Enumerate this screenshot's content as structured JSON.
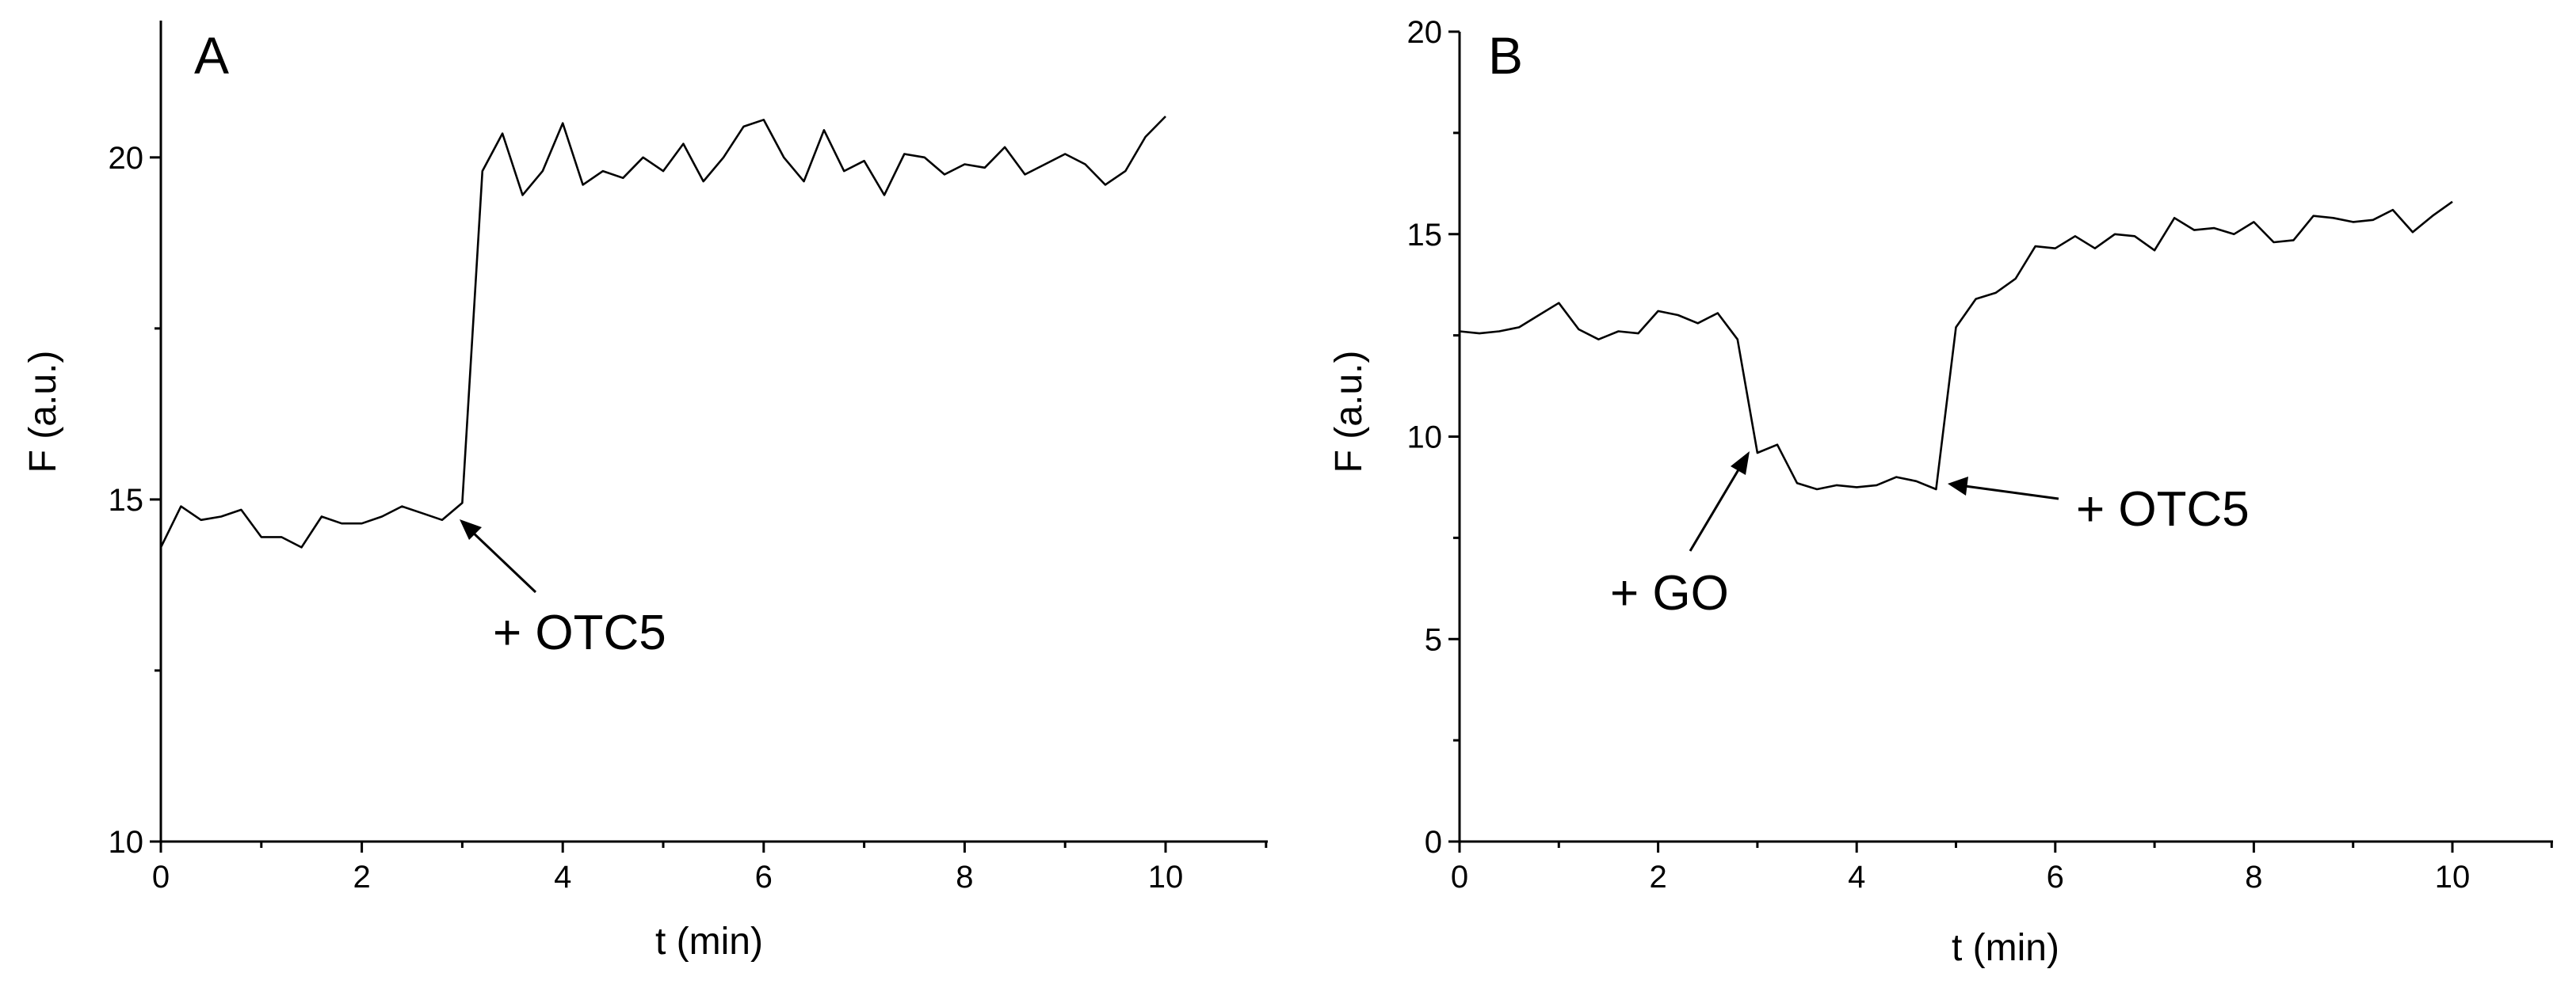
{
  "chart_data": [
    {
      "type": "line",
      "panel_label": "A",
      "xlabel": "t (min)",
      "ylabel": "F (a.u.)",
      "xlim": [
        0,
        11
      ],
      "ylim": [
        10,
        22
      ],
      "xticks": [
        0,
        2,
        4,
        6,
        8,
        10
      ],
      "yticks": [
        10,
        15,
        20
      ],
      "grid": false,
      "series": [
        {
          "x": [
            0,
            0.2,
            0.4,
            0.6,
            0.8,
            1.0,
            1.2,
            1.4,
            1.6,
            1.8,
            2.0,
            2.2,
            2.4,
            2.6,
            2.8,
            3.0,
            3.2,
            3.4,
            3.6,
            3.8,
            4.0,
            4.2,
            4.4,
            4.6,
            4.8,
            5.0,
            5.2,
            5.4,
            5.6,
            5.8,
            6.0,
            6.2,
            6.4,
            6.6,
            6.8,
            7.0,
            7.2,
            7.4,
            7.6,
            7.8,
            8.0,
            8.2,
            8.4,
            8.6,
            8.8,
            9.0,
            9.2,
            9.4,
            9.6,
            9.8,
            10.0
          ],
          "y": [
            14.3,
            14.9,
            14.7,
            14.75,
            14.85,
            14.45,
            14.45,
            14.3,
            14.75,
            14.65,
            14.65,
            14.75,
            14.9,
            14.8,
            14.7,
            14.95,
            19.8,
            20.35,
            19.45,
            19.8,
            20.5,
            19.6,
            19.8,
            19.7,
            20.0,
            19.8,
            20.2,
            19.65,
            20.0,
            20.45,
            20.55,
            20.0,
            19.65,
            20.4,
            19.8,
            19.95,
            19.45,
            20.05,
            20.0,
            19.75,
            19.9,
            19.85,
            20.15,
            19.75,
            19.9,
            20.05,
            19.9,
            19.6,
            19.8,
            20.3,
            20.6
          ]
        }
      ],
      "annotations": [
        {
          "text": "+ OTC5",
          "target": [
            3.0,
            14.8
          ]
        }
      ]
    },
    {
      "type": "line",
      "panel_label": "B",
      "xlabel": "t (min)",
      "ylabel": "F (a.u.)",
      "xlim": [
        0,
        11
      ],
      "ylim": [
        0,
        20
      ],
      "xticks": [
        0,
        2,
        4,
        6,
        8,
        10
      ],
      "yticks": [
        0,
        5,
        10,
        15,
        20
      ],
      "grid": false,
      "series": [
        {
          "x": [
            0,
            0.2,
            0.4,
            0.6,
            0.8,
            1.0,
            1.2,
            1.4,
            1.6,
            1.8,
            2.0,
            2.2,
            2.4,
            2.6,
            2.8,
            3.0,
            3.2,
            3.4,
            3.6,
            3.8,
            4.0,
            4.2,
            4.4,
            4.6,
            4.8,
            5.0,
            5.2,
            5.4,
            5.6,
            5.8,
            6.0,
            6.2,
            6.4,
            6.6,
            6.8,
            7.0,
            7.2,
            7.4,
            7.6,
            7.8,
            8.0,
            8.2,
            8.4,
            8.6,
            8.8,
            9.0,
            9.2,
            9.4,
            9.6,
            9.8,
            10.0
          ],
          "y": [
            12.6,
            12.55,
            12.6,
            12.7,
            13.0,
            13.3,
            12.65,
            12.4,
            12.6,
            12.55,
            13.1,
            13.0,
            12.8,
            13.05,
            12.4,
            9.6,
            9.8,
            8.85,
            8.7,
            8.8,
            8.75,
            8.8,
            9.0,
            8.9,
            8.7,
            12.7,
            13.4,
            13.55,
            13.9,
            14.7,
            14.65,
            14.95,
            14.65,
            15.0,
            14.95,
            14.6,
            15.4,
            15.1,
            15.15,
            15.0,
            15.3,
            14.8,
            14.85,
            15.45,
            15.4,
            15.3,
            15.35,
            15.6,
            15.05,
            15.45,
            15.8
          ]
        }
      ],
      "annotations": [
        {
          "text": "+ GO",
          "target": [
            3.0,
            9.6
          ]
        },
        {
          "text": "+ OTC5",
          "target": [
            4.8,
            8.8
          ]
        }
      ]
    }
  ]
}
